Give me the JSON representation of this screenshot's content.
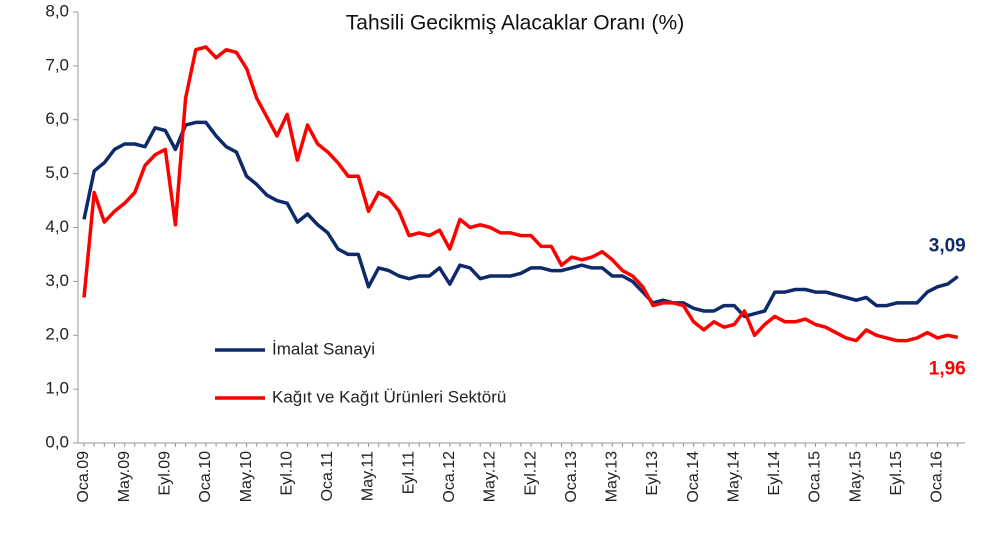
{
  "chart_data": {
    "type": "line",
    "title": "Tahsili Gecikmiş Alacaklar Oranı (%)",
    "categories": [
      "Oca.09",
      null,
      null,
      null,
      "May.09",
      null,
      null,
      null,
      "Eyl.09",
      null,
      null,
      null,
      "Oca.10",
      null,
      null,
      null,
      "May.10",
      null,
      null,
      null,
      "Eyl.10",
      null,
      null,
      null,
      "Oca.11",
      null,
      null,
      null,
      "May.11",
      null,
      null,
      null,
      "Eyl.11",
      null,
      null,
      null,
      "Oca.12",
      null,
      null,
      null,
      "May.12",
      null,
      null,
      null,
      "Eyl.12",
      null,
      null,
      null,
      "Oca.13",
      null,
      null,
      null,
      "May.13",
      null,
      null,
      null,
      "Eyl.13",
      null,
      null,
      null,
      "Oca.14",
      null,
      null,
      null,
      "May.14",
      null,
      null,
      null,
      "Eyl.14",
      null,
      null,
      null,
      "Oca.15",
      null,
      null,
      null,
      "May.15",
      null,
      null,
      null,
      "Eyl.15",
      null,
      null,
      null,
      "Oca.16",
      null,
      null
    ],
    "series": [
      {
        "name": "İmalat Sanayi",
        "color": "#0d2a6b",
        "end_label": "3,09",
        "values": [
          4.15,
          5.05,
          5.2,
          5.45,
          5.55,
          5.55,
          5.5,
          5.85,
          5.8,
          5.45,
          5.9,
          5.95,
          5.95,
          5.7,
          5.5,
          5.4,
          4.95,
          4.8,
          4.6,
          4.5,
          4.45,
          4.1,
          4.25,
          4.05,
          3.9,
          3.6,
          3.5,
          3.5,
          2.9,
          3.25,
          3.2,
          3.1,
          3.05,
          3.1,
          3.1,
          3.25,
          2.95,
          3.3,
          3.25,
          3.05,
          3.1,
          3.1,
          3.1,
          3.15,
          3.25,
          3.25,
          3.2,
          3.2,
          3.25,
          3.3,
          3.25,
          3.25,
          3.1,
          3.1,
          3.0,
          2.8,
          2.6,
          2.65,
          2.6,
          2.6,
          2.5,
          2.45,
          2.45,
          2.55,
          2.55,
          2.35,
          2.4,
          2.45,
          2.8,
          2.8,
          2.85,
          2.85,
          2.8,
          2.8,
          2.75,
          2.7,
          2.65,
          2.7,
          2.55,
          2.55,
          2.6,
          2.6,
          2.6,
          2.8,
          2.9,
          2.95,
          3.09
        ]
      },
      {
        "name": "Kağıt ve Kağıt Ürünleri Sektörü",
        "color": "#ff0000",
        "end_label": "1,96",
        "values": [
          2.7,
          4.65,
          4.1,
          4.3,
          4.45,
          4.65,
          5.15,
          5.35,
          5.45,
          4.05,
          6.4,
          7.3,
          7.35,
          7.15,
          7.3,
          7.25,
          6.95,
          6.4,
          6.05,
          5.7,
          6.1,
          5.25,
          5.9,
          5.55,
          5.4,
          5.2,
          4.95,
          4.95,
          4.3,
          4.65,
          4.55,
          4.3,
          3.85,
          3.9,
          3.85,
          3.95,
          3.6,
          4.15,
          4.0,
          4.05,
          4.0,
          3.9,
          3.9,
          3.85,
          3.85,
          3.65,
          3.65,
          3.3,
          3.45,
          3.4,
          3.45,
          3.55,
          3.4,
          3.2,
          3.1,
          2.9,
          2.55,
          2.6,
          2.6,
          2.55,
          2.25,
          2.1,
          2.25,
          2.15,
          2.2,
          2.45,
          2.0,
          2.2,
          2.35,
          2.25,
          2.25,
          2.3,
          2.2,
          2.15,
          2.05,
          1.95,
          1.9,
          2.1,
          2.0,
          1.95,
          1.9,
          1.9,
          1.95,
          2.05,
          1.95,
          2.0,
          1.96
        ]
      }
    ],
    "ylim": [
      0,
      8
    ],
    "yticks": [
      {
        "value": 0,
        "label": "0,0"
      },
      {
        "value": 1,
        "label": "1,0"
      },
      {
        "value": 2,
        "label": "2,0"
      },
      {
        "value": 3,
        "label": "3,0"
      },
      {
        "value": 4,
        "label": "4,0"
      },
      {
        "value": 5,
        "label": "5,0"
      },
      {
        "value": 6,
        "label": "6,0"
      },
      {
        "value": 7,
        "label": "7,0"
      },
      {
        "value": 8,
        "label": "8,0"
      }
    ],
    "grid": false
  }
}
